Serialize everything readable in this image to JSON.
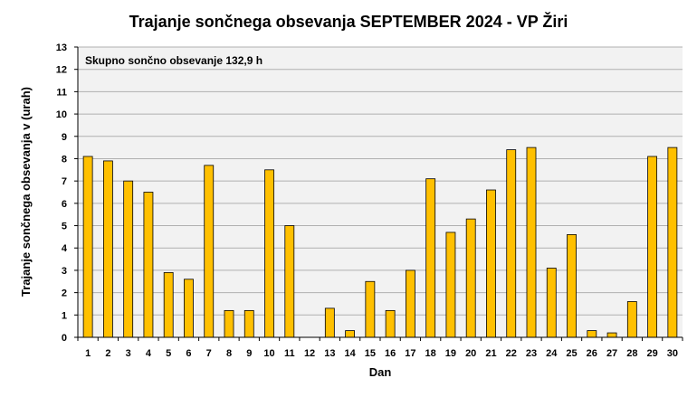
{
  "chart_data": {
    "type": "bar",
    "title": "Trajanje sončnega obsevanja SEPTEMBER 2024 - VP Žiri",
    "annotation": "Skupno sončno obsevanje 132,9 h",
    "xlabel": "Dan",
    "ylabel": "Trajanje sončnega obsevanja v (urah)",
    "ylim": [
      0,
      13
    ],
    "yticks": [
      0,
      1,
      2,
      3,
      4,
      5,
      6,
      7,
      8,
      9,
      10,
      11,
      12,
      13
    ],
    "grid": true,
    "categories": [
      "1",
      "2",
      "3",
      "4",
      "5",
      "6",
      "7",
      "8",
      "9",
      "10",
      "11",
      "12",
      "13",
      "14",
      "15",
      "16",
      "17",
      "18",
      "19",
      "20",
      "21",
      "22",
      "23",
      "24",
      "25",
      "26",
      "27",
      "28",
      "29",
      "30"
    ],
    "values": [
      8.1,
      7.9,
      7.0,
      6.5,
      2.9,
      2.6,
      7.7,
      1.2,
      1.2,
      7.5,
      5.0,
      0.0,
      1.3,
      0.3,
      2.5,
      1.2,
      3.0,
      7.1,
      4.7,
      5.3,
      6.6,
      8.4,
      8.5,
      3.1,
      4.6,
      0.3,
      0.2,
      1.6,
      8.1,
      8.5
    ],
    "colors": {
      "bar_fill": "#FFC000",
      "bar_stroke": "#000000",
      "plot_bg": "#F2F2F2",
      "grid": "#B0B0B0"
    }
  }
}
